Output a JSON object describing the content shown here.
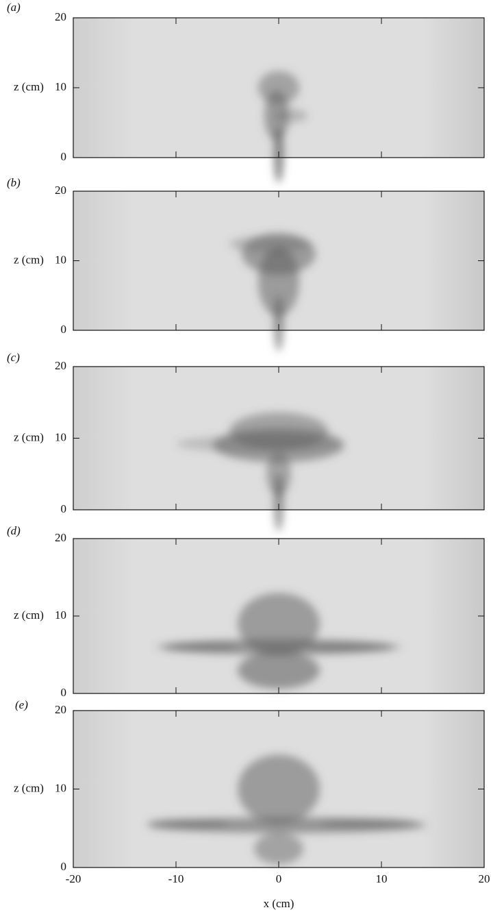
{
  "chart_data": [
    {
      "type": "image",
      "panel": "(a)",
      "ylabel": "z (cm)",
      "xlim": [
        -20,
        20
      ],
      "ylim": [
        0,
        20
      ],
      "yticks": [
        0,
        10,
        20
      ]
    },
    {
      "type": "image",
      "panel": "(b)",
      "ylabel": "z (cm)",
      "xlim": [
        -20,
        20
      ],
      "ylim": [
        0,
        20
      ],
      "yticks": [
        0,
        10,
        20
      ]
    },
    {
      "type": "image",
      "panel": "(c)",
      "ylabel": "z (cm)",
      "xlim": [
        -20,
        20
      ],
      "ylim": [
        0,
        20
      ],
      "yticks": [
        0,
        10,
        20
      ]
    },
    {
      "type": "image",
      "panel": "(d)",
      "ylabel": "z (cm)",
      "xlim": [
        -20,
        20
      ],
      "ylim": [
        0,
        20
      ],
      "yticks": [
        0,
        10,
        20
      ]
    },
    {
      "type": "image",
      "panel": "(e)",
      "ylabel": "z (cm)",
      "xlabel": "x (cm)",
      "xlim": [
        -20,
        20
      ],
      "ylim": [
        0,
        20
      ],
      "yticks": [
        0,
        10,
        20
      ],
      "xticks": [
        -20,
        -10,
        0,
        10,
        20
      ]
    }
  ]
}
